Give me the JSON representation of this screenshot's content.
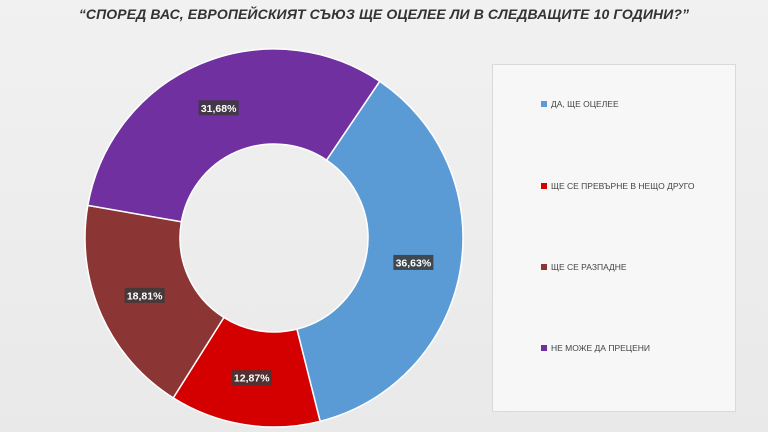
{
  "chart_data": {
    "type": "pie",
    "title": "“СПОРЕД ВАС, ЕВРОПЕЙСКИЯТ СЪЮЗ  ЩЕ ОЦЕЛЕЕ ЛИ В СЛЕДВАЩИТЕ 10 ГОДИНИ?”",
    "donut": true,
    "legend_position": "right",
    "categories": [
      "ДА, ЩЕ ОЦЕЛЕЕ",
      "ЩЕ СЕ ПРЕВЪРНЕ В НЕЩО ДРУГО",
      "ЩЕ СЕ РАЗПАДНЕ",
      "НЕ МОЖЕ ДА ПРЕЦЕНИ"
    ],
    "values": [
      36.63,
      12.87,
      18.81,
      31.68
    ],
    "labels": [
      "36,63%",
      "12,87%",
      "18,81%",
      "31,68%"
    ],
    "colors": [
      "#5b9bd5",
      "#d40000",
      "#8b3535",
      "#7030a0"
    ]
  }
}
